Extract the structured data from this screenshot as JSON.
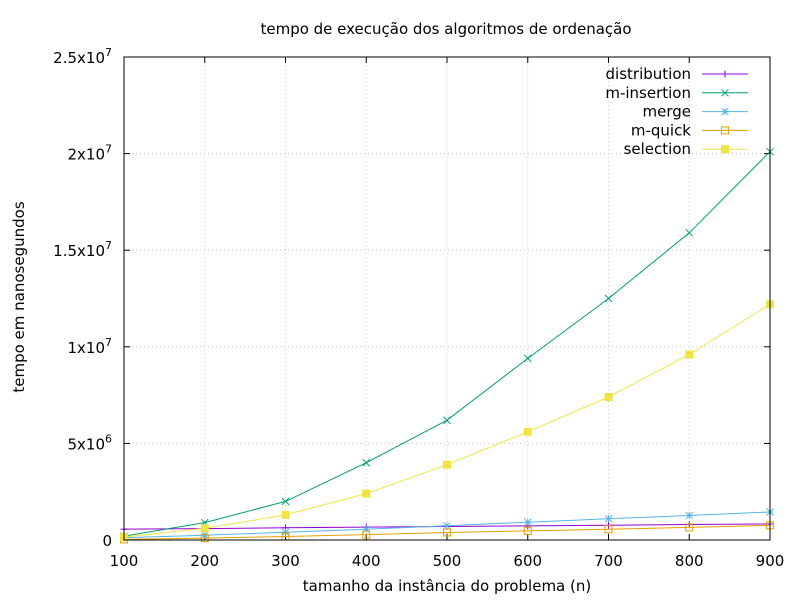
{
  "chart_data": {
    "type": "line",
    "title": "tempo de execução dos algoritmos de ordenação",
    "xlabel": "tamanho da instância do problema (n)",
    "ylabel": "tempo em nanosegundos",
    "x": [
      100,
      200,
      300,
      400,
      500,
      600,
      700,
      800,
      900
    ],
    "xlim": [
      100,
      900
    ],
    "ylim": [
      0,
      25000000
    ],
    "xticks": [
      100,
      200,
      300,
      400,
      500,
      600,
      700,
      800,
      900
    ],
    "yticks": [
      {
        "value": 0,
        "mantissa": "0",
        "exp": ""
      },
      {
        "value": 5000000,
        "mantissa": "5x10",
        "exp": "6"
      },
      {
        "value": 10000000,
        "mantissa": "1x10",
        "exp": "7"
      },
      {
        "value": 15000000,
        "mantissa": "1.5x10",
        "exp": "7"
      },
      {
        "value": 20000000,
        "mantissa": "2x10",
        "exp": "7"
      },
      {
        "value": 25000000,
        "mantissa": "2.5x10",
        "exp": "7"
      }
    ],
    "grid": true,
    "legend_position": "top-right",
    "series": [
      {
        "name": "distribution",
        "color": "#9400d3",
        "marker": "plus",
        "values": [
          560000,
          590000,
          630000,
          670000,
          700000,
          730000,
          760000,
          800000,
          830000
        ]
      },
      {
        "name": "m-insertion",
        "color": "#009e73",
        "marker": "cross",
        "values": [
          200000,
          900000,
          2000000,
          4000000,
          6200000,
          9400000,
          12500000,
          15900000,
          20100000
        ]
      },
      {
        "name": "merge",
        "color": "#56b4e9",
        "marker": "star",
        "values": [
          120000,
          250000,
          400000,
          560000,
          740000,
          920000,
          1100000,
          1270000,
          1450000
        ]
      },
      {
        "name": "m-quick",
        "color": "#e69f00",
        "marker": "open-square",
        "values": [
          30000,
          100000,
          180000,
          280000,
          390000,
          470000,
          560000,
          650000,
          760000
        ]
      },
      {
        "name": "selection",
        "color": "#f0e442",
        "marker": "filled-square",
        "values": [
          150000,
          600000,
          1300000,
          2400000,
          3900000,
          5600000,
          7400000,
          9600000,
          12200000
        ]
      }
    ]
  }
}
